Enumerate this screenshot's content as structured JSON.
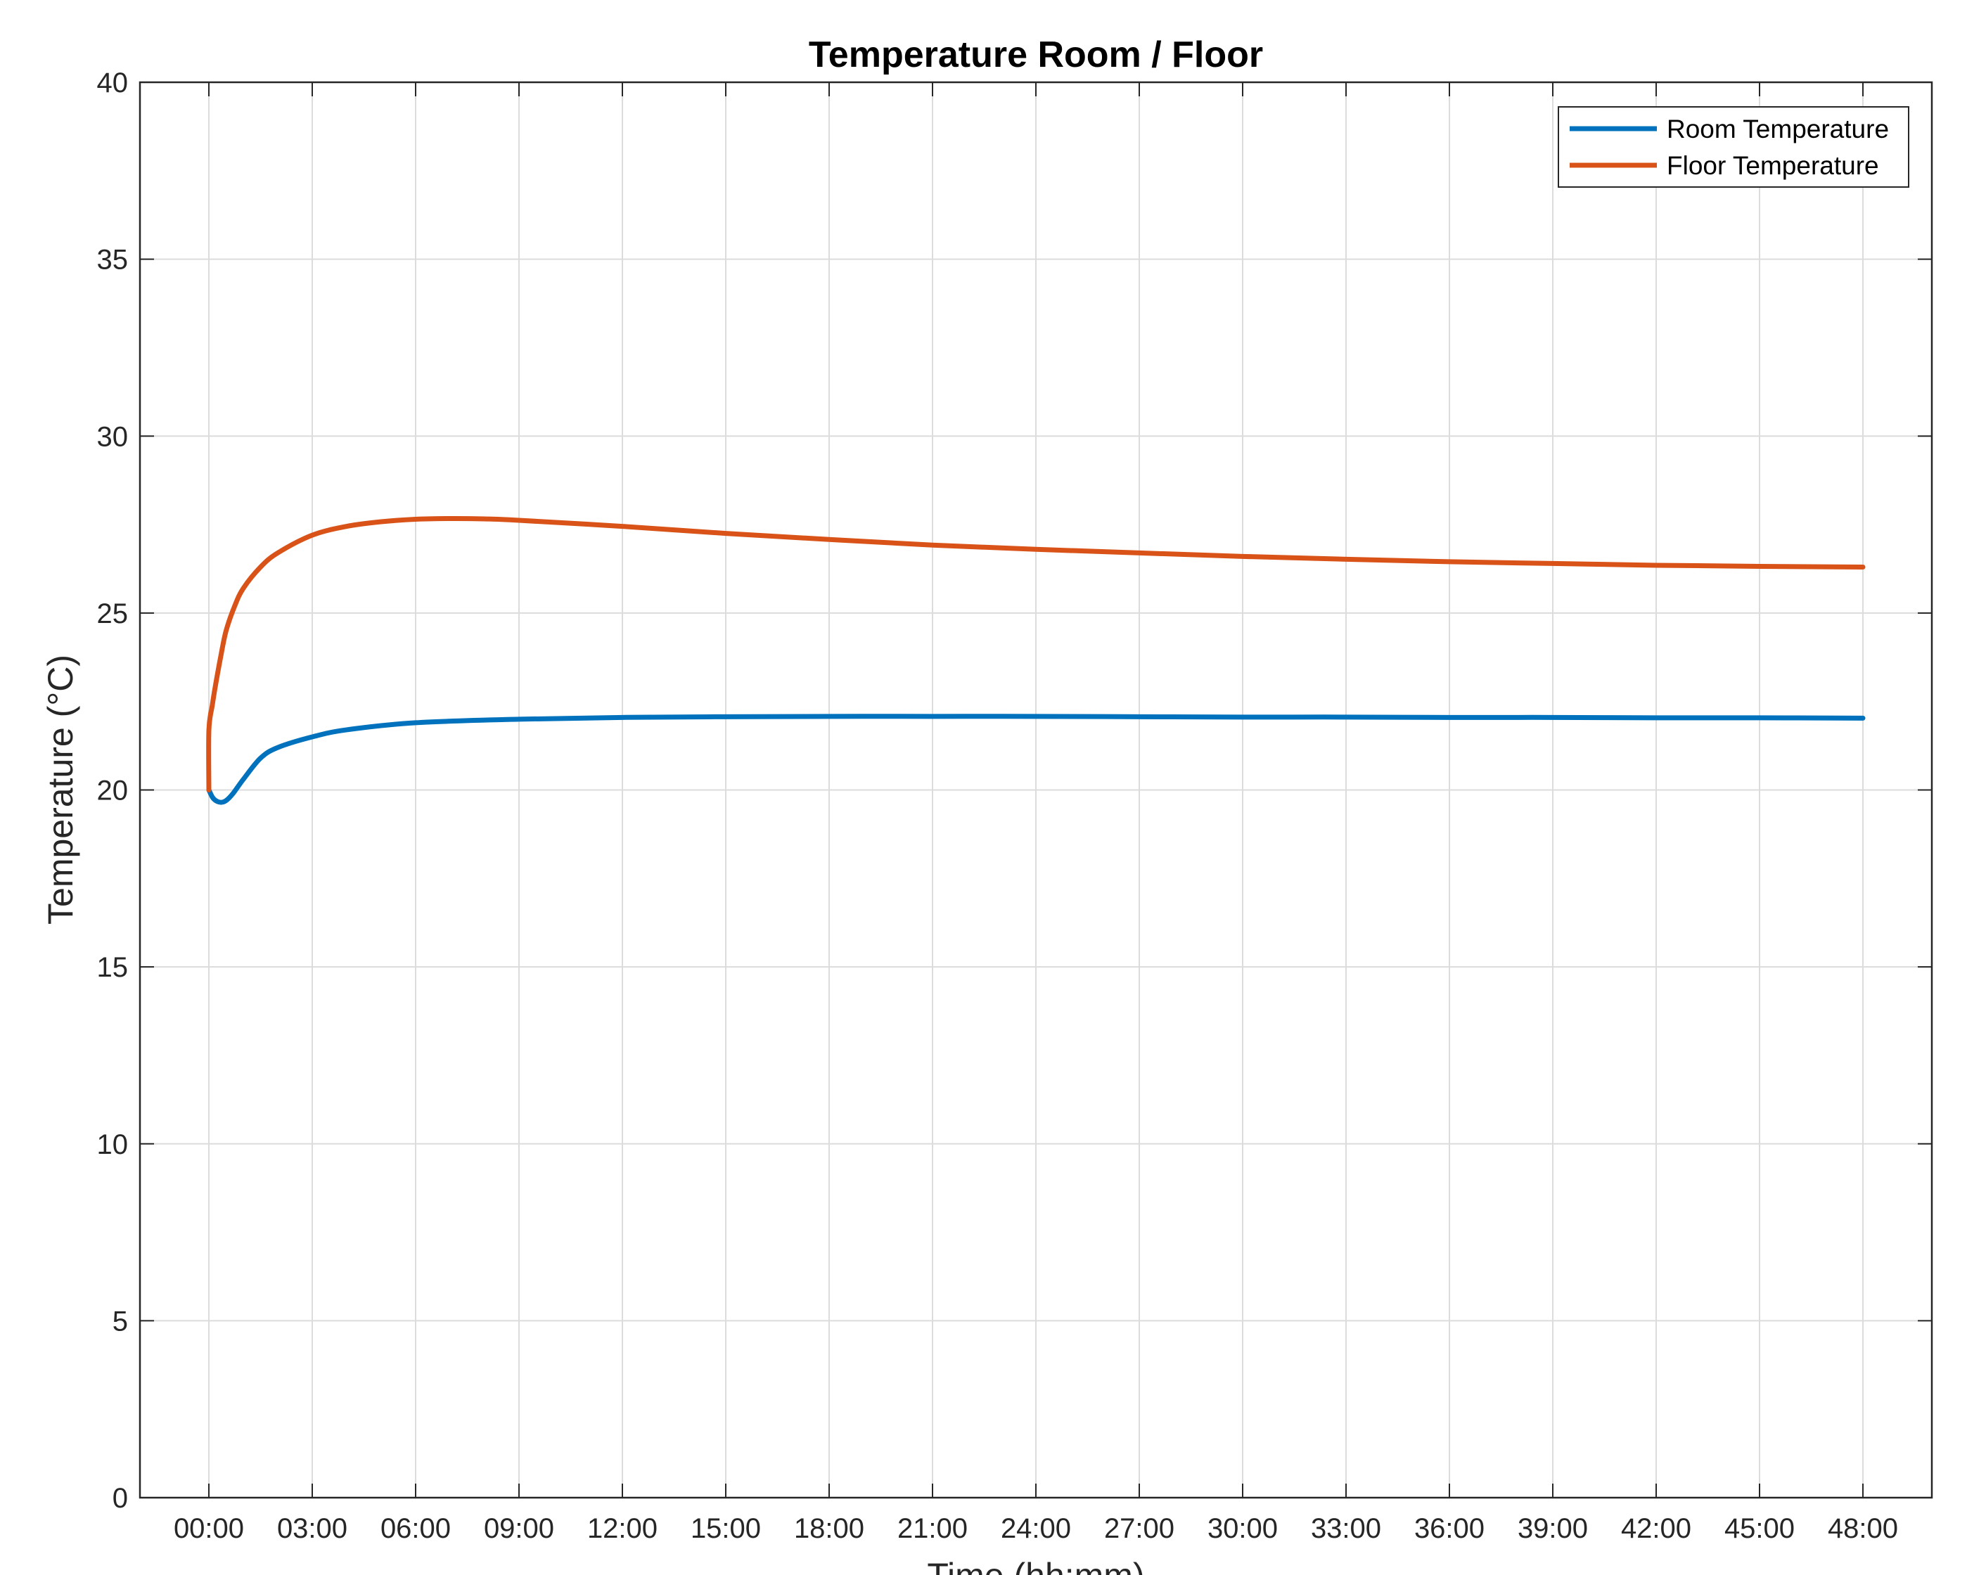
{
  "chart_data": {
    "type": "line",
    "title": "Temperature Room / Floor",
    "xlabel": "Time (hh:mm)",
    "ylabel": "Temperature (°C)",
    "xlim": [
      -2,
      50
    ],
    "ylim": [
      0,
      40
    ],
    "grid": true,
    "legend_position": "top-right",
    "x_ticks": [
      {
        "value": 0,
        "label": "00:00"
      },
      {
        "value": 3,
        "label": "03:00"
      },
      {
        "value": 6,
        "label": "06:00"
      },
      {
        "value": 9,
        "label": "09:00"
      },
      {
        "value": 12,
        "label": "12:00"
      },
      {
        "value": 15,
        "label": "15:00"
      },
      {
        "value": 18,
        "label": "18:00"
      },
      {
        "value": 21,
        "label": "21:00"
      },
      {
        "value": 24,
        "label": "24:00"
      },
      {
        "value": 27,
        "label": "27:00"
      },
      {
        "value": 30,
        "label": "30:00"
      },
      {
        "value": 33,
        "label": "33:00"
      },
      {
        "value": 36,
        "label": "36:00"
      },
      {
        "value": 39,
        "label": "39:00"
      },
      {
        "value": 42,
        "label": "42:00"
      },
      {
        "value": 45,
        "label": "45:00"
      },
      {
        "value": 48,
        "label": "48:00"
      }
    ],
    "y_ticks": [
      0,
      5,
      10,
      15,
      20,
      25,
      30,
      35,
      40
    ],
    "series": [
      {
        "name": "Room Temperature",
        "color": "#0072BD",
        "x": [
          0,
          0.1,
          0.2,
          0.35,
          0.5,
          0.7,
          1,
          1.5,
          2,
          3,
          4,
          6,
          9,
          12,
          15,
          18,
          21,
          24,
          27,
          30,
          33,
          36,
          39,
          42,
          45,
          48
        ],
        "y": [
          20.0,
          19.8,
          19.7,
          19.65,
          19.7,
          19.9,
          20.3,
          20.9,
          21.2,
          21.5,
          21.7,
          21.9,
          22.0,
          22.05,
          22.07,
          22.08,
          22.08,
          22.08,
          22.07,
          22.06,
          22.06,
          22.05,
          22.05,
          22.04,
          22.04,
          22.03
        ]
      },
      {
        "name": "Floor Temperature",
        "color": "#D95319",
        "x": [
          0,
          0.001,
          0.1,
          0.2,
          0.35,
          0.5,
          0.75,
          1,
          1.5,
          2,
          3,
          4,
          5,
          6,
          7,
          8,
          9,
          12,
          15,
          18,
          21,
          24,
          27,
          30,
          33,
          36,
          39,
          42,
          45,
          48
        ],
        "y": [
          20.0,
          21.7,
          22.4,
          23.0,
          23.8,
          24.5,
          25.2,
          25.7,
          26.3,
          26.7,
          27.2,
          27.45,
          27.58,
          27.65,
          27.67,
          27.66,
          27.62,
          27.45,
          27.25,
          27.08,
          26.92,
          26.8,
          26.7,
          26.6,
          26.52,
          26.45,
          26.4,
          26.35,
          26.32,
          26.3
        ]
      }
    ]
  }
}
